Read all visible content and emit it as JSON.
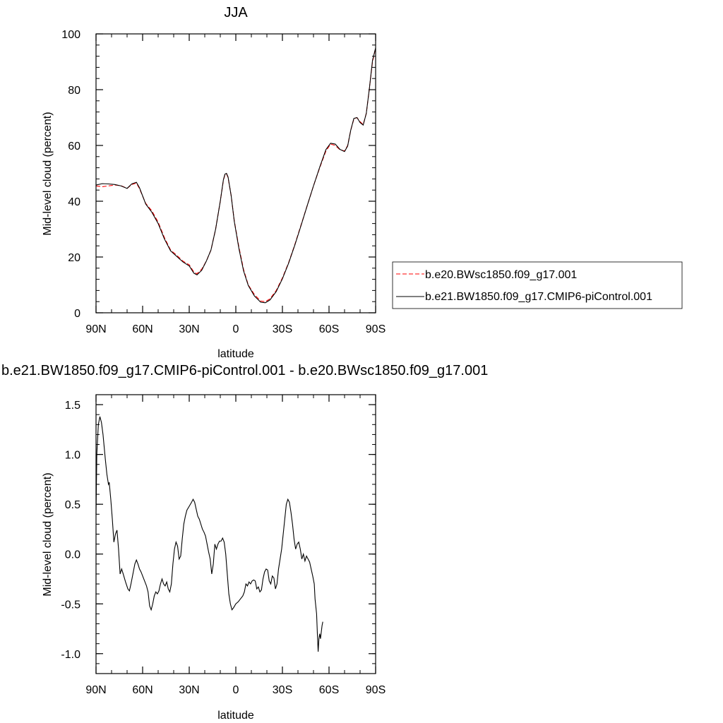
{
  "chart_data": [
    {
      "type": "line",
      "title": "JJA",
      "xlabel": "latitude",
      "ylabel": "Mid-level cloud (percent)",
      "xlim": [
        90,
        -90
      ],
      "ylim": [
        0,
        100
      ],
      "x_ticks": [
        90,
        60,
        30,
        0,
        -30,
        -60,
        -90
      ],
      "x_tick_labels": [
        "90N",
        "60N",
        "30N",
        "0",
        "30S",
        "60S",
        "90S"
      ],
      "y_ticks": [
        0,
        20,
        40,
        60,
        80,
        100
      ],
      "y_tick_labels": [
        "0",
        "20",
        "40",
        "60",
        "80",
        "100"
      ],
      "legend_position": "right",
      "series": [
        {
          "name": "b.e20.BWsc1850.f09_g17.001",
          "color": "#ff0000",
          "style": "dashed",
          "points": [
            [
              90,
              45.5
            ],
            [
              86,
              45.2
            ],
            [
              82,
              45.5
            ],
            [
              78,
              45.8
            ],
            [
              74,
              45.6
            ],
            [
              70,
              44.6
            ],
            [
              67,
              46.0
            ],
            [
              64,
              46.5
            ],
            [
              62,
              44.5
            ],
            [
              58,
              39.2
            ],
            [
              54,
              36.5
            ],
            [
              50,
              32.5
            ],
            [
              46,
              27.0
            ],
            [
              42,
              22.5
            ],
            [
              38,
              20.6
            ],
            [
              34,
              18.5
            ],
            [
              30,
              17.2
            ],
            [
              27,
              14.6
            ],
            [
              25,
              14.0
            ],
            [
              22,
              15.6
            ],
            [
              19,
              18.5
            ],
            [
              16,
              22.5
            ],
            [
              13,
              30.0
            ],
            [
              10,
              40.0
            ],
            [
              8,
              47.5
            ],
            [
              7,
              49.5
            ],
            [
              6,
              49.8
            ],
            [
              5,
              48.5
            ],
            [
              3,
              42.0
            ],
            [
              1,
              33.0
            ],
            [
              -2,
              23.5
            ],
            [
              -5,
              15.5
            ],
            [
              -8,
              10.0
            ],
            [
              -12,
              6.5
            ],
            [
              -16,
              4.2
            ],
            [
              -19,
              4.0
            ],
            [
              -22,
              5.0
            ],
            [
              -26,
              8.0
            ],
            [
              -30,
              12.5
            ],
            [
              -34,
              18.0
            ],
            [
              -38,
              24.5
            ],
            [
              -42,
              31.5
            ],
            [
              -46,
              38.5
            ],
            [
              -50,
              45.5
            ],
            [
              -54,
              52.0
            ],
            [
              -58,
              58.0
            ],
            [
              -61,
              60.5
            ],
            [
              -64,
              60.0
            ],
            [
              -67,
              58.5
            ],
            [
              -70,
              58.0
            ],
            [
              -72,
              60.0
            ],
            [
              -74,
              65.5
            ],
            [
              -76,
              69.5
            ],
            [
              -78,
              70.0
            ],
            [
              -80,
              68.5
            ],
            [
              -82,
              67.5
            ],
            [
              -84,
              71.5
            ],
            [
              -86,
              80.5
            ],
            [
              -88,
              90.0
            ],
            [
              -90,
              95.0
            ]
          ]
        },
        {
          "name": "b.e21.BW1850.f09_g17.CMIP6-piControl.001",
          "color": "#000000",
          "style": "solid",
          "points": [
            [
              90,
              45.8
            ],
            [
              86,
              46.3
            ],
            [
              82,
              46.2
            ],
            [
              78,
              46.0
            ],
            [
              74,
              45.5
            ],
            [
              70,
              44.6
            ],
            [
              67,
              46.2
            ],
            [
              64,
              46.8
            ],
            [
              62,
              44.8
            ],
            [
              58,
              39.0
            ],
            [
              54,
              36.0
            ],
            [
              50,
              32.0
            ],
            [
              46,
              26.5
            ],
            [
              42,
              22.2
            ],
            [
              38,
              20.2
            ],
            [
              34,
              18.2
            ],
            [
              30,
              16.8
            ],
            [
              27,
              14.2
            ],
            [
              25,
              13.6
            ],
            [
              22,
              15.2
            ],
            [
              19,
              18.5
            ],
            [
              16,
              22.5
            ],
            [
              13,
              30.0
            ],
            [
              10,
              40.0
            ],
            [
              8,
              47.7
            ],
            [
              7,
              49.7
            ],
            [
              6,
              50.0
            ],
            [
              5,
              48.7
            ],
            [
              3,
              42.0
            ],
            [
              1,
              32.8
            ],
            [
              -2,
              23.0
            ],
            [
              -5,
              15.0
            ],
            [
              -8,
              9.8
            ],
            [
              -12,
              6.0
            ],
            [
              -16,
              3.8
            ],
            [
              -19,
              3.6
            ],
            [
              -22,
              4.6
            ],
            [
              -26,
              7.6
            ],
            [
              -30,
              12.2
            ],
            [
              -34,
              17.8
            ],
            [
              -38,
              24.3
            ],
            [
              -42,
              31.3
            ],
            [
              -46,
              38.5
            ],
            [
              -50,
              45.5
            ],
            [
              -54,
              52.2
            ],
            [
              -58,
              58.5
            ],
            [
              -61,
              60.8
            ],
            [
              -64,
              60.5
            ],
            [
              -67,
              58.6
            ],
            [
              -70,
              57.8
            ],
            [
              -72,
              59.8
            ],
            [
              -74,
              65.5
            ],
            [
              -76,
              69.7
            ],
            [
              -78,
              70.0
            ],
            [
              -80,
              68.2
            ],
            [
              -82,
              67.3
            ],
            [
              -84,
              71.5
            ],
            [
              -86,
              80.5
            ],
            [
              -88,
              90.5
            ],
            [
              -90,
              95.0
            ]
          ]
        }
      ]
    },
    {
      "type": "line",
      "title": "b.e21.BW1850.f09_g17.CMIP6-piControl.001 - b.e20.BWsc1850.f09_g17.001",
      "xlabel": "latitude",
      "ylabel": "Mid-level cloud (percent)",
      "xlim": [
        90,
        -90
      ],
      "ylim": [
        -1.2,
        1.6
      ],
      "x_ticks": [
        90,
        60,
        30,
        0,
        -30,
        -60,
        -90
      ],
      "x_tick_labels": [
        "90N",
        "60N",
        "30N",
        "0",
        "30S",
        "60S",
        "90S"
      ],
      "y_ticks": [
        -1.0,
        -0.5,
        0.0,
        0.5,
        1.0,
        1.5
      ],
      "y_tick_labels": [
        "-1.0",
        "-0.5",
        "0.0",
        "0.5",
        "1.0",
        "1.5"
      ],
      "series": [
        {
          "color": "#000000",
          "style": "solid",
          "points": [
            [
              90,
              0.4
            ],
            [
              89.5,
              1.0
            ],
            [
              88.5,
              1.3
            ],
            [
              87.5,
              1.38
            ],
            [
              86.5,
              1.32
            ],
            [
              85.5,
              1.2
            ],
            [
              84,
              0.95
            ],
            [
              83,
              0.8
            ],
            [
              82,
              0.7
            ],
            [
              81.5,
              0.72
            ],
            [
              80.5,
              0.55
            ],
            [
              79.5,
              0.35
            ],
            [
              78.5,
              0.12
            ],
            [
              77.5,
              0.2
            ],
            [
              76.5,
              0.24
            ],
            [
              75.5,
              0.05
            ],
            [
              74.5,
              -0.2
            ],
            [
              73.5,
              -0.15
            ],
            [
              72.5,
              -0.2
            ],
            [
              71,
              -0.28
            ],
            [
              69.5,
              -0.35
            ],
            [
              68.5,
              -0.37
            ],
            [
              67.5,
              -0.3
            ],
            [
              66.5,
              -0.22
            ],
            [
              65,
              -0.1
            ],
            [
              64,
              -0.06
            ],
            [
              63,
              -0.1
            ],
            [
              62,
              -0.15
            ],
            [
              61,
              -0.18
            ],
            [
              59.5,
              -0.24
            ],
            [
              58.5,
              -0.28
            ],
            [
              57.5,
              -0.32
            ],
            [
              56.5,
              -0.38
            ],
            [
              55.5,
              -0.52
            ],
            [
              54.5,
              -0.56
            ],
            [
              53.5,
              -0.5
            ],
            [
              52.5,
              -0.42
            ],
            [
              51.5,
              -0.38
            ],
            [
              50.5,
              -0.4
            ],
            [
              49.5,
              -0.37
            ],
            [
              48.5,
              -0.3
            ],
            [
              47.5,
              -0.25
            ],
            [
              46.5,
              -0.3
            ],
            [
              45.5,
              -0.32
            ],
            [
              44.5,
              -0.28
            ],
            [
              43.5,
              -0.35
            ],
            [
              42.5,
              -0.38
            ],
            [
              41.5,
              -0.3
            ],
            [
              40.5,
              -0.1
            ],
            [
              39.5,
              0.05
            ],
            [
              38.5,
              0.12
            ],
            [
              37.5,
              0.08
            ],
            [
              36.5,
              -0.05
            ],
            [
              35.5,
              -0.02
            ],
            [
              34.5,
              0.15
            ],
            [
              33.5,
              0.3
            ],
            [
              32.5,
              0.38
            ],
            [
              31.5,
              0.44
            ],
            [
              30,
              0.48
            ],
            [
              28.5,
              0.52
            ],
            [
              27.5,
              0.55
            ],
            [
              26.5,
              0.52
            ],
            [
              25.5,
              0.45
            ],
            [
              24.5,
              0.38
            ],
            [
              23.5,
              0.35
            ],
            [
              22.5,
              0.3
            ],
            [
              21.5,
              0.25
            ],
            [
              20.5,
              0.22
            ],
            [
              19.5,
              0.18
            ],
            [
              18.5,
              0.1
            ],
            [
              17.5,
              0.02
            ],
            [
              16.5,
              -0.05
            ],
            [
              15.5,
              -0.2
            ],
            [
              14.5,
              -0.1
            ],
            [
              13.5,
              0.1
            ],
            [
              12.5,
              0.05
            ],
            [
              11.5,
              0.1
            ],
            [
              10.5,
              0.13
            ],
            [
              9.5,
              0.13
            ],
            [
              8.5,
              0.16
            ],
            [
              7.5,
              0.12
            ],
            [
              6.5,
              0.0
            ],
            [
              5.5,
              -0.2
            ],
            [
              4.5,
              -0.4
            ],
            [
              3.5,
              -0.5
            ],
            [
              2.5,
              -0.56
            ],
            [
              1.5,
              -0.54
            ],
            [
              0,
              -0.5
            ],
            [
              -1.5,
              -0.48
            ],
            [
              -3,
              -0.45
            ],
            [
              -4.5,
              -0.42
            ],
            [
              -5.5,
              -0.38
            ],
            [
              -6.5,
              -0.3
            ],
            [
              -7.5,
              -0.32
            ],
            [
              -8.5,
              -0.28
            ],
            [
              -9.5,
              -0.3
            ],
            [
              -10.5,
              -0.27
            ],
            [
              -11.5,
              -0.26
            ],
            [
              -12.5,
              -0.27
            ],
            [
              -13.5,
              -0.35
            ],
            [
              -14.5,
              -0.33
            ],
            [
              -15.5,
              -0.38
            ],
            [
              -16.5,
              -0.36
            ],
            [
              -17.5,
              -0.25
            ],
            [
              -18.5,
              -0.18
            ],
            [
              -19.5,
              -0.15
            ],
            [
              -20.5,
              -0.16
            ],
            [
              -21.5,
              -0.27
            ],
            [
              -22.5,
              -0.3
            ],
            [
              -23.5,
              -0.22
            ],
            [
              -24.5,
              -0.24
            ],
            [
              -25.5,
              -0.35
            ],
            [
              -26.5,
              -0.3
            ],
            [
              -27.5,
              -0.15
            ],
            [
              -28.5,
              -0.05
            ],
            [
              -29.5,
              0.05
            ],
            [
              -30.5,
              0.2
            ],
            [
              -31.5,
              0.35
            ],
            [
              -32.5,
              0.5
            ],
            [
              -33.5,
              0.55
            ],
            [
              -34.5,
              0.52
            ],
            [
              -35.5,
              0.42
            ],
            [
              -36.5,
              0.3
            ],
            [
              -37.5,
              0.15
            ],
            [
              -38.5,
              0.05
            ],
            [
              -39.5,
              0.1
            ],
            [
              -40.5,
              0.12
            ],
            [
              -41.5,
              0.05
            ],
            [
              -42.5,
              -0.05
            ],
            [
              -43.5,
              0.0
            ],
            [
              -44.5,
              -0.07
            ],
            [
              -45.5,
              -0.02
            ],
            [
              -46.5,
              -0.05
            ],
            [
              -47.5,
              -0.08
            ],
            [
              -48.5,
              -0.15
            ],
            [
              -49.5,
              -0.22
            ],
            [
              -50.5,
              -0.3
            ],
            [
              -51,
              -0.45
            ],
            [
              -52,
              -0.6
            ],
            [
              -52.5,
              -0.8
            ],
            [
              -53,
              -0.98
            ],
            [
              -53.5,
              -0.85
            ],
            [
              -54,
              -0.8
            ],
            [
              -54.5,
              -0.85
            ],
            [
              -55.5,
              -0.72
            ],
            [
              -56,
              -0.68
            ]
          ]
        }
      ]
    }
  ]
}
